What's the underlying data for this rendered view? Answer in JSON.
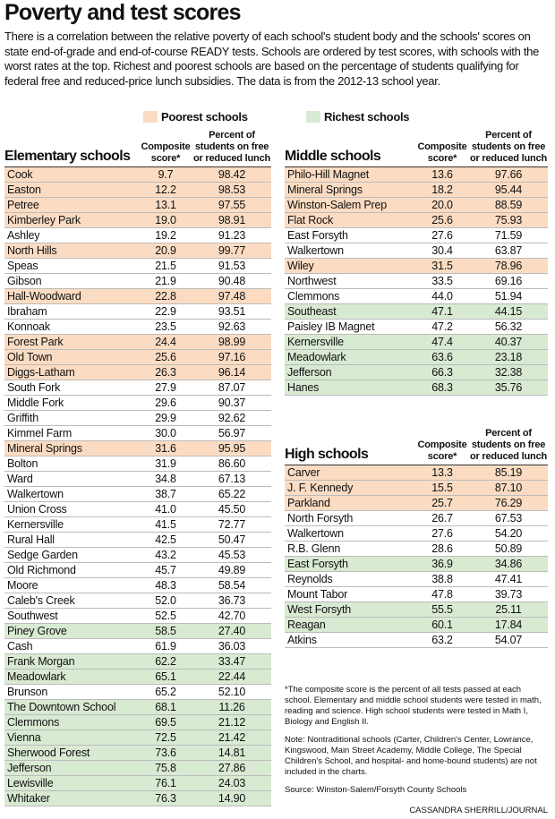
{
  "header": {
    "title": "Poverty and test scores",
    "intro": "There is a correlation between the relative poverty of each school's student body and the schools' scores on state end-of-grade and end-of-course READY tests. Schools are ordered by test scores, with schools with the worst rates at the top. Richest and poorest schools are based on the percentage of students qualifying for federal free and reduced-price lunch subsidies. The data is from the 2012-13 school year."
  },
  "legend": [
    {
      "label": "Poorest schools",
      "color": "#fbdcc3"
    },
    {
      "label": "Richest schools",
      "color": "#d9ead3"
    }
  ],
  "tables": [
    {
      "title": "Elementary schools",
      "columns": [
        "Composite score*",
        "Percent of students on free or reduced lunch"
      ],
      "rows": [
        {
          "cells": [
            "Cook",
            "9.7",
            "98.42"
          ],
          "color": "#fbdcc3"
        },
        {
          "cells": [
            "Easton",
            "12.2",
            "98.53"
          ],
          "color": "#fbdcc3"
        },
        {
          "cells": [
            "Petree",
            "13.1",
            "97.55"
          ],
          "color": "#fbdcc3"
        },
        {
          "cells": [
            "Kimberley Park",
            "19.0",
            "98.91"
          ],
          "color": "#fbdcc3"
        },
        {
          "cells": [
            "Ashley",
            "19.2",
            "91.23"
          ]
        },
        {
          "cells": [
            "North Hills",
            "20.9",
            "99.77"
          ],
          "color": "#fbdcc3"
        },
        {
          "cells": [
            "Speas",
            "21.5",
            "91.53"
          ]
        },
        {
          "cells": [
            "Gibson",
            "21.9",
            "90.48"
          ]
        },
        {
          "cells": [
            "Hall-Woodward",
            "22.8",
            "97.48"
          ],
          "color": "#fbdcc3"
        },
        {
          "cells": [
            "Ibraham",
            "22.9",
            "93.51"
          ]
        },
        {
          "cells": [
            "Konnoak",
            "23.5",
            "92.63"
          ]
        },
        {
          "cells": [
            "Forest Park",
            "24.4",
            "98.99"
          ],
          "color": "#fbdcc3"
        },
        {
          "cells": [
            "Old Town",
            "25.6",
            "97.16"
          ],
          "color": "#fbdcc3"
        },
        {
          "cells": [
            "Diggs-Latham",
            "26.3",
            "96.14"
          ],
          "color": "#fbdcc3"
        },
        {
          "cells": [
            "South Fork",
            "27.9",
            "87.07"
          ]
        },
        {
          "cells": [
            "Middle Fork",
            "29.6",
            "90.37"
          ]
        },
        {
          "cells": [
            "Griffith",
            "29.9",
            "92.62"
          ]
        },
        {
          "cells": [
            "Kimmel Farm",
            "30.0",
            "56.97"
          ]
        },
        {
          "cells": [
            "Mineral Springs",
            "31.6",
            "95.95"
          ],
          "color": "#fbdcc3"
        },
        {
          "cells": [
            "Bolton",
            "31.9",
            "86.60"
          ]
        },
        {
          "cells": [
            "Ward",
            "34.8",
            "67.13"
          ]
        },
        {
          "cells": [
            "Walkertown",
            "38.7",
            "65.22"
          ]
        },
        {
          "cells": [
            "Union Cross",
            "41.0",
            "45.50"
          ]
        },
        {
          "cells": [
            "Kernersville",
            "41.5",
            "72.77"
          ]
        },
        {
          "cells": [
            "Rural Hall",
            "42.5",
            "50.47"
          ]
        },
        {
          "cells": [
            "Sedge Garden",
            "43.2",
            "45.53"
          ]
        },
        {
          "cells": [
            "Old Richmond",
            "45.7",
            "49.89"
          ]
        },
        {
          "cells": [
            "Moore",
            "48.3",
            "58.54"
          ]
        },
        {
          "cells": [
            "Caleb's Creek",
            "52.0",
            "36.73"
          ]
        },
        {
          "cells": [
            "Southwest",
            "52.5",
            "42.70"
          ]
        },
        {
          "cells": [
            "Piney Grove",
            "58.5",
            "27.40"
          ],
          "color": "#d9ead3"
        },
        {
          "cells": [
            "Cash",
            "61.9",
            "36.03"
          ]
        },
        {
          "cells": [
            "Frank Morgan",
            "62.2",
            "33.47"
          ],
          "color": "#d9ead3"
        },
        {
          "cells": [
            "Meadowlark",
            "65.1",
            "22.44"
          ],
          "color": "#d9ead3"
        },
        {
          "cells": [
            "Brunson",
            "65.2",
            "52.10"
          ]
        },
        {
          "cells": [
            "The Downtown School",
            "68.1",
            "11.26"
          ],
          "color": "#d9ead3"
        },
        {
          "cells": [
            "Clemmons",
            "69.5",
            "21.12"
          ],
          "color": "#d9ead3"
        },
        {
          "cells": [
            "Vienna",
            "72.5",
            "21.42"
          ],
          "color": "#d9ead3"
        },
        {
          "cells": [
            "Sherwood Forest",
            "73.6",
            "14.81"
          ],
          "color": "#d9ead3"
        },
        {
          "cells": [
            "Jefferson",
            "75.8",
            "27.86"
          ],
          "color": "#d9ead3"
        },
        {
          "cells": [
            "Lewisville",
            "76.1",
            "24.03"
          ],
          "color": "#d9ead3"
        },
        {
          "cells": [
            "Whitaker",
            "76.3",
            "14.90"
          ],
          "color": "#d9ead3"
        }
      ]
    },
    {
      "title": "Middle schools",
      "columns": [
        "Composite score*",
        "Percent of students on free or reduced lunch"
      ],
      "rows": [
        {
          "cells": [
            "Philo-Hill Magnet",
            "13.6",
            "97.66"
          ],
          "color": "#fbdcc3"
        },
        {
          "cells": [
            "Mineral Springs",
            "18.2",
            "95.44"
          ],
          "color": "#fbdcc3"
        },
        {
          "cells": [
            "Winston-Salem Prep",
            "20.0",
            "88.59"
          ],
          "color": "#fbdcc3"
        },
        {
          "cells": [
            "Flat Rock",
            "25.6",
            "75.93"
          ],
          "color": "#fbdcc3"
        },
        {
          "cells": [
            "East Forsyth",
            "27.6",
            "71.59"
          ]
        },
        {
          "cells": [
            "Walkertown",
            "30.4",
            "63.87"
          ]
        },
        {
          "cells": [
            "Wiley",
            "31.5",
            "78.96"
          ],
          "color": "#fbdcc3"
        },
        {
          "cells": [
            "Northwest",
            "33.5",
            "69.16"
          ]
        },
        {
          "cells": [
            "Clemmons",
            "44.0",
            "51.94"
          ]
        },
        {
          "cells": [
            "Southeast",
            "47.1",
            "44.15"
          ],
          "color": "#d9ead3"
        },
        {
          "cells": [
            "Paisley IB Magnet",
            "47.2",
            "56.32"
          ]
        },
        {
          "cells": [
            "Kernersville",
            "47.4",
            "40.37"
          ],
          "color": "#d9ead3"
        },
        {
          "cells": [
            "Meadowlark",
            "63.6",
            "23.18"
          ],
          "color": "#d9ead3"
        },
        {
          "cells": [
            "Jefferson",
            "66.3",
            "32.38"
          ],
          "color": "#d9ead3"
        },
        {
          "cells": [
            "Hanes",
            "68.3",
            "35.76"
          ],
          "color": "#d9ead3"
        }
      ]
    },
    {
      "title": "High schools",
      "columns": [
        "Composite score*",
        "Percent of students on free or reduced lunch"
      ],
      "rows": [
        {
          "cells": [
            "Carver",
            "13.3",
            "85.19"
          ],
          "color": "#fbdcc3"
        },
        {
          "cells": [
            "J. F. Kennedy",
            "15.5",
            "87.10"
          ],
          "color": "#fbdcc3"
        },
        {
          "cells": [
            "Parkland",
            "25.7",
            "76.29"
          ],
          "color": "#fbdcc3"
        },
        {
          "cells": [
            "North Forsyth",
            "26.7",
            "67.53"
          ]
        },
        {
          "cells": [
            "Walkertown",
            "27.6",
            "54.20"
          ]
        },
        {
          "cells": [
            "R.B. Glenn",
            "28.6",
            "50.89"
          ]
        },
        {
          "cells": [
            "East Forsyth",
            "36.9",
            "34.86"
          ],
          "color": "#d9ead3"
        },
        {
          "cells": [
            "Reynolds",
            "38.8",
            "47.41"
          ]
        },
        {
          "cells": [
            "Mount Tabor",
            "47.8",
            "39.73"
          ]
        },
        {
          "cells": [
            "West Forsyth",
            "55.5",
            "25.11"
          ],
          "color": "#d9ead3"
        },
        {
          "cells": [
            "Reagan",
            "60.1",
            "17.84"
          ],
          "color": "#d9ead3"
        },
        {
          "cells": [
            "Atkins",
            "63.2",
            "54.07"
          ]
        }
      ]
    }
  ],
  "notes": [
    "*The composite score is the percent of all tests passed at each school. Elementary and middle school students were tested in math, reading and science. High school students were tested in Math I, Biology and English II.",
    "Note: Nontraditional schools (Carter, Children's Center, Lowrance, Kingswood, Main Street Academy, Middle College, The Special Children's School, and hospital- and home-bound students) are not included in the charts.",
    "Source: Winston-Salem/Forsyth County Schools"
  ],
  "credit": "CASSANDRA SHERRILL/JOURNAL"
}
